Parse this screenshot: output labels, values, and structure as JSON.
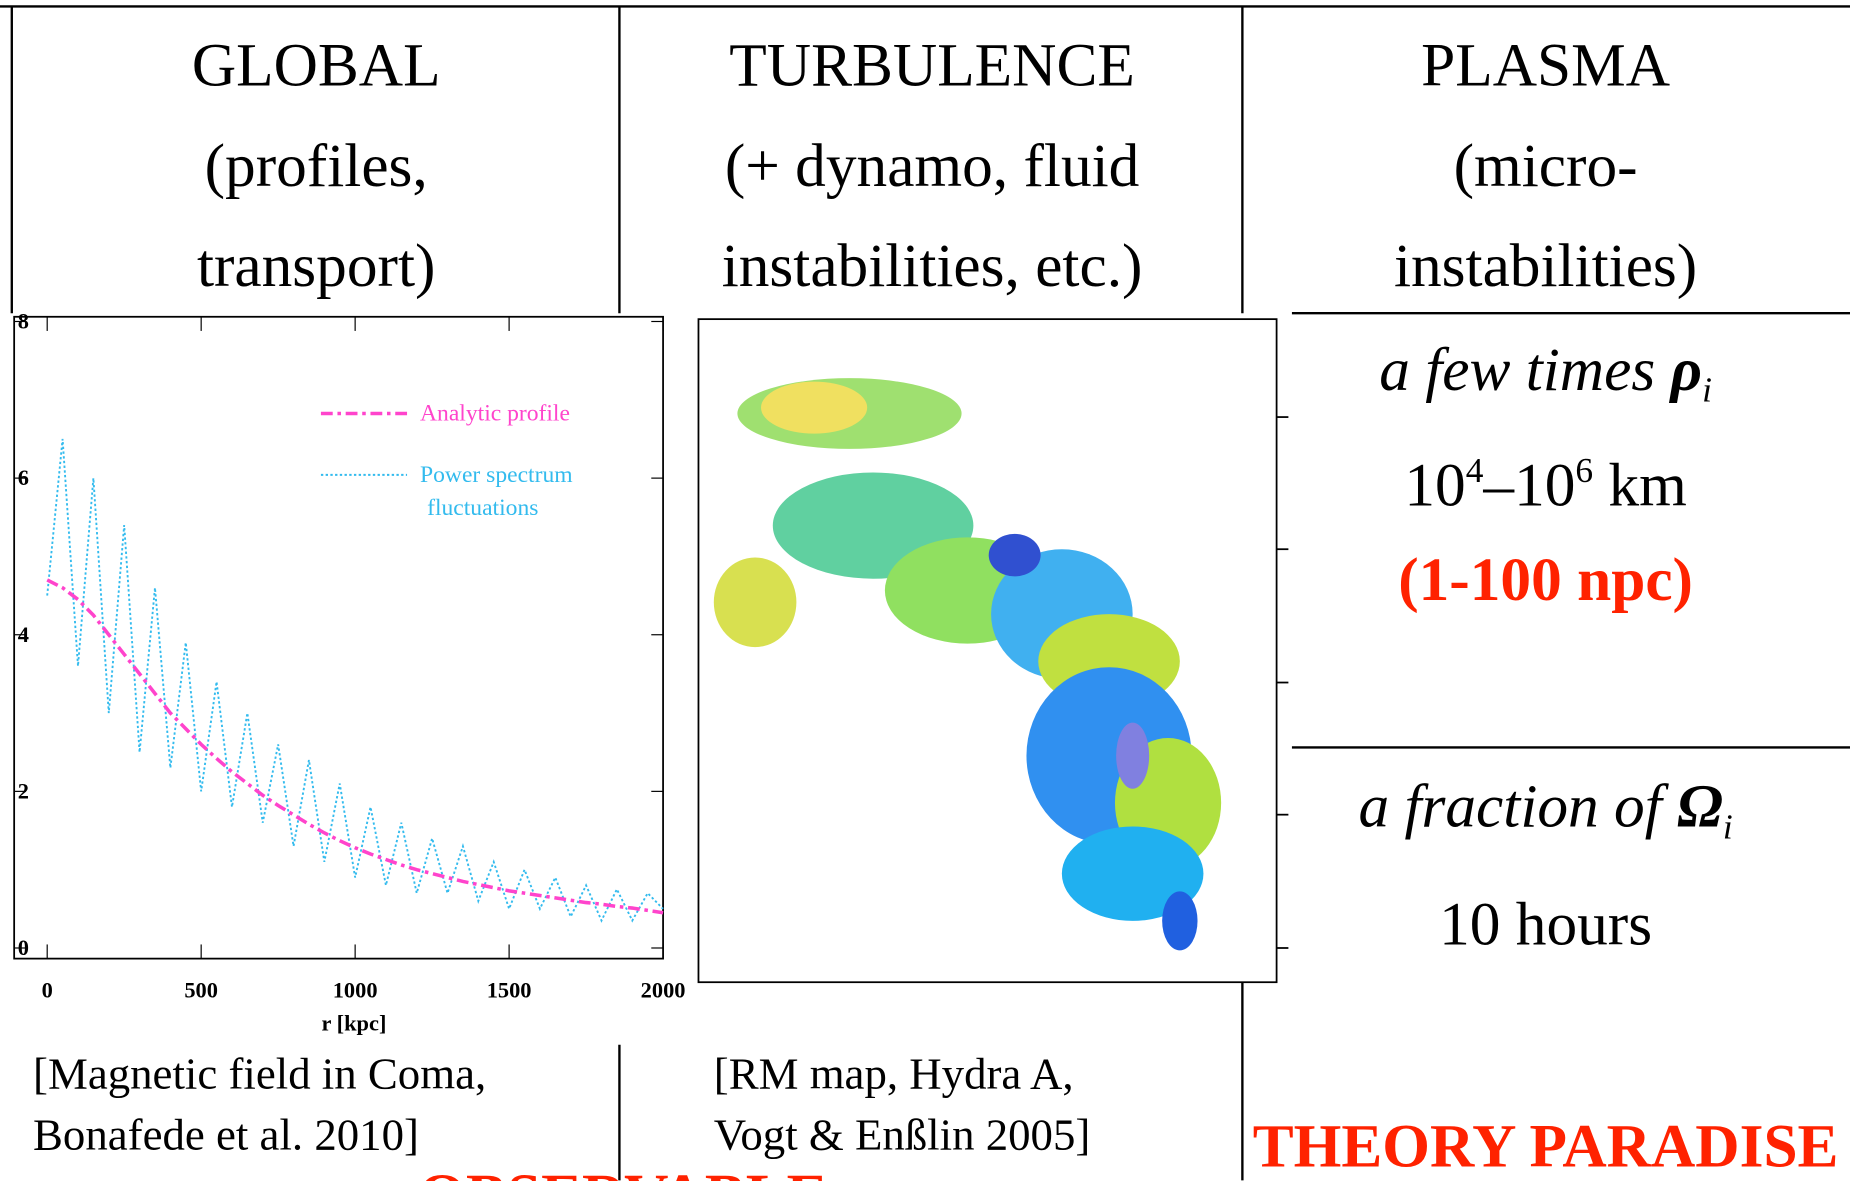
{
  "columns": [
    {
      "title": "GLOBAL",
      "lines": [
        "(profiles,",
        "transport)"
      ]
    },
    {
      "title": "TURBULENCE",
      "lines": [
        "(+ dynamo, fluid",
        "instabilities, etc.)"
      ]
    },
    {
      "title": "PLASMA",
      "lines": [
        "(micro-",
        "instabilities)"
      ]
    }
  ],
  "plasma": {
    "length": {
      "prefix": "a few times ",
      "symbol": "ρ",
      "sub": "i"
    },
    "length_value": {
      "base1": "10",
      "exp1": "4",
      "base2": "–10",
      "exp2": "6",
      "unit": " km"
    },
    "length_note": "(1-100 npc)",
    "time": {
      "prefix": "a fraction of ",
      "symbol": "Ω",
      "sub": "i"
    },
    "time_value": "10 hours"
  },
  "captions": {
    "global": [
      "[Magnetic field in Coma,",
      "Bonafede et al. 2010]"
    ],
    "turbulence": [
      "[RM map, Hydra A,",
      "Vogt & Enßlin 2005]"
    ]
  },
  "labels": {
    "observable": "OBSERVABLE",
    "theory": "THEORY PARADISE"
  },
  "chart_data": {
    "type": "line",
    "xlabel": "r [kpc]",
    "x": [
      0,
      50,
      100,
      150,
      200,
      250,
      300,
      350,
      400,
      450,
      500,
      550,
      600,
      650,
      700,
      750,
      800,
      850,
      900,
      950,
      1000,
      1050,
      1100,
      1150,
      1200,
      1250,
      1300,
      1350,
      1400,
      1450,
      1500,
      1550,
      1600,
      1650,
      1700,
      1750,
      1800,
      1850,
      1900,
      1950,
      2000
    ],
    "series": [
      {
        "name": "Analytic profile",
        "color": "#ff44cc",
        "values": [
          4.7,
          4.6,
          4.45,
          4.25,
          4.0,
          3.75,
          3.5,
          3.25,
          3.0,
          2.8,
          2.6,
          2.42,
          2.25,
          2.1,
          1.95,
          1.82,
          1.7,
          1.58,
          1.47,
          1.37,
          1.28,
          1.2,
          1.13,
          1.06,
          1.0,
          0.95,
          0.9,
          0.85,
          0.81,
          0.77,
          0.73,
          0.7,
          0.67,
          0.64,
          0.61,
          0.58,
          0.56,
          0.53,
          0.51,
          0.48,
          0.45
        ]
      },
      {
        "name": "Power spectrum fluctuations",
        "color": "#33bbee",
        "values": [
          4.5,
          6.5,
          3.6,
          6.0,
          3.0,
          5.4,
          2.5,
          4.6,
          2.3,
          3.9,
          2.0,
          3.4,
          1.8,
          3.0,
          1.6,
          2.6,
          1.3,
          2.4,
          1.1,
          2.1,
          0.9,
          1.8,
          0.8,
          1.6,
          0.7,
          1.4,
          0.7,
          1.3,
          0.6,
          1.1,
          0.5,
          1.0,
          0.5,
          0.9,
          0.4,
          0.8,
          0.35,
          0.75,
          0.35,
          0.7,
          0.5
        ]
      }
    ],
    "xlim": [
      0,
      2000
    ],
    "xticks": [
      0,
      500,
      1000,
      1500,
      2000
    ],
    "ylim": [
      0,
      8
    ],
    "yticks": [
      0,
      2,
      4,
      6,
      8
    ]
  }
}
